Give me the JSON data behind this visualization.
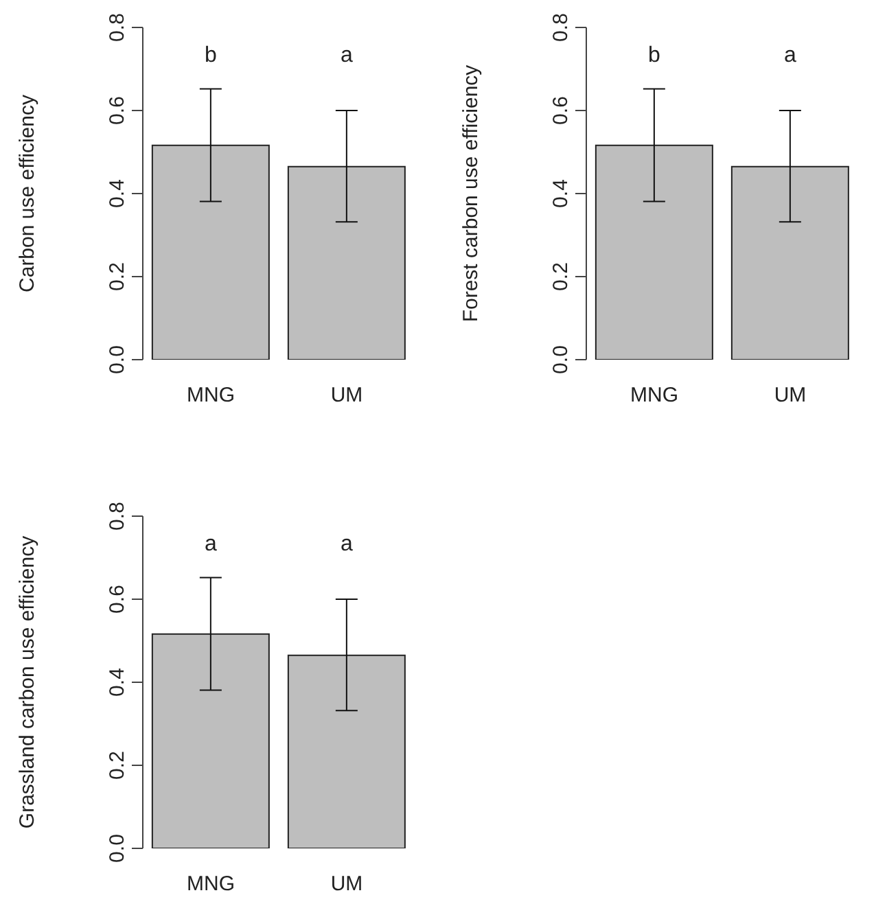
{
  "chart_data": [
    {
      "type": "bar",
      "ylabel": "Carbon use efficiency",
      "categories": [
        "MNG",
        "UM"
      ],
      "values": [
        0.516,
        0.465
      ],
      "errors": [
        [
          0.381,
          0.652
        ],
        [
          0.332,
          0.6
        ]
      ],
      "color": "#bebebe",
      "ylim": [
        0,
        0.8
      ],
      "yticks": [
        {
          "value": 0,
          "label": "0.0"
        },
        {
          "value": 0.2,
          "label": "0.2"
        },
        {
          "value": 0.4,
          "label": "0.4"
        },
        {
          "value": 0.6,
          "label": "0.6"
        },
        {
          "value": 0.8,
          "label": "0.8"
        }
      ],
      "annotations": [
        "b",
        "a"
      ]
    },
    {
      "type": "bar",
      "ylabel": "Forest carbon use efficiency",
      "categories": [
        "MNG",
        "UM"
      ],
      "values": [
        0.516,
        0.465
      ],
      "errors": [
        [
          0.381,
          0.652
        ],
        [
          0.332,
          0.6
        ]
      ],
      "color": "#bebebe",
      "ylim": [
        0,
        0.8
      ],
      "yticks": [
        {
          "value": 0,
          "label": "0.0"
        },
        {
          "value": 0.2,
          "label": "0.2"
        },
        {
          "value": 0.4,
          "label": "0.4"
        },
        {
          "value": 0.6,
          "label": "0.6"
        },
        {
          "value": 0.8,
          "label": "0.8"
        }
      ],
      "annotations": [
        "b",
        "a"
      ]
    },
    {
      "type": "bar",
      "ylabel": "Grassland carbon use efficiency",
      "categories": [
        "MNG",
        "UM"
      ],
      "values": [
        0.516,
        0.465
      ],
      "errors": [
        [
          0.381,
          0.652
        ],
        [
          0.332,
          0.6
        ]
      ],
      "color": "#bebebe",
      "ylim": [
        0,
        0.8
      ],
      "yticks": [
        {
          "value": 0,
          "label": "0.0"
        },
        {
          "value": 0.2,
          "label": "0.2"
        },
        {
          "value": 0.4,
          "label": "0.4"
        },
        {
          "value": 0.6,
          "label": "0.6"
        },
        {
          "value": 0.8,
          "label": "0.8"
        }
      ],
      "annotations": [
        "a",
        "a"
      ]
    }
  ]
}
